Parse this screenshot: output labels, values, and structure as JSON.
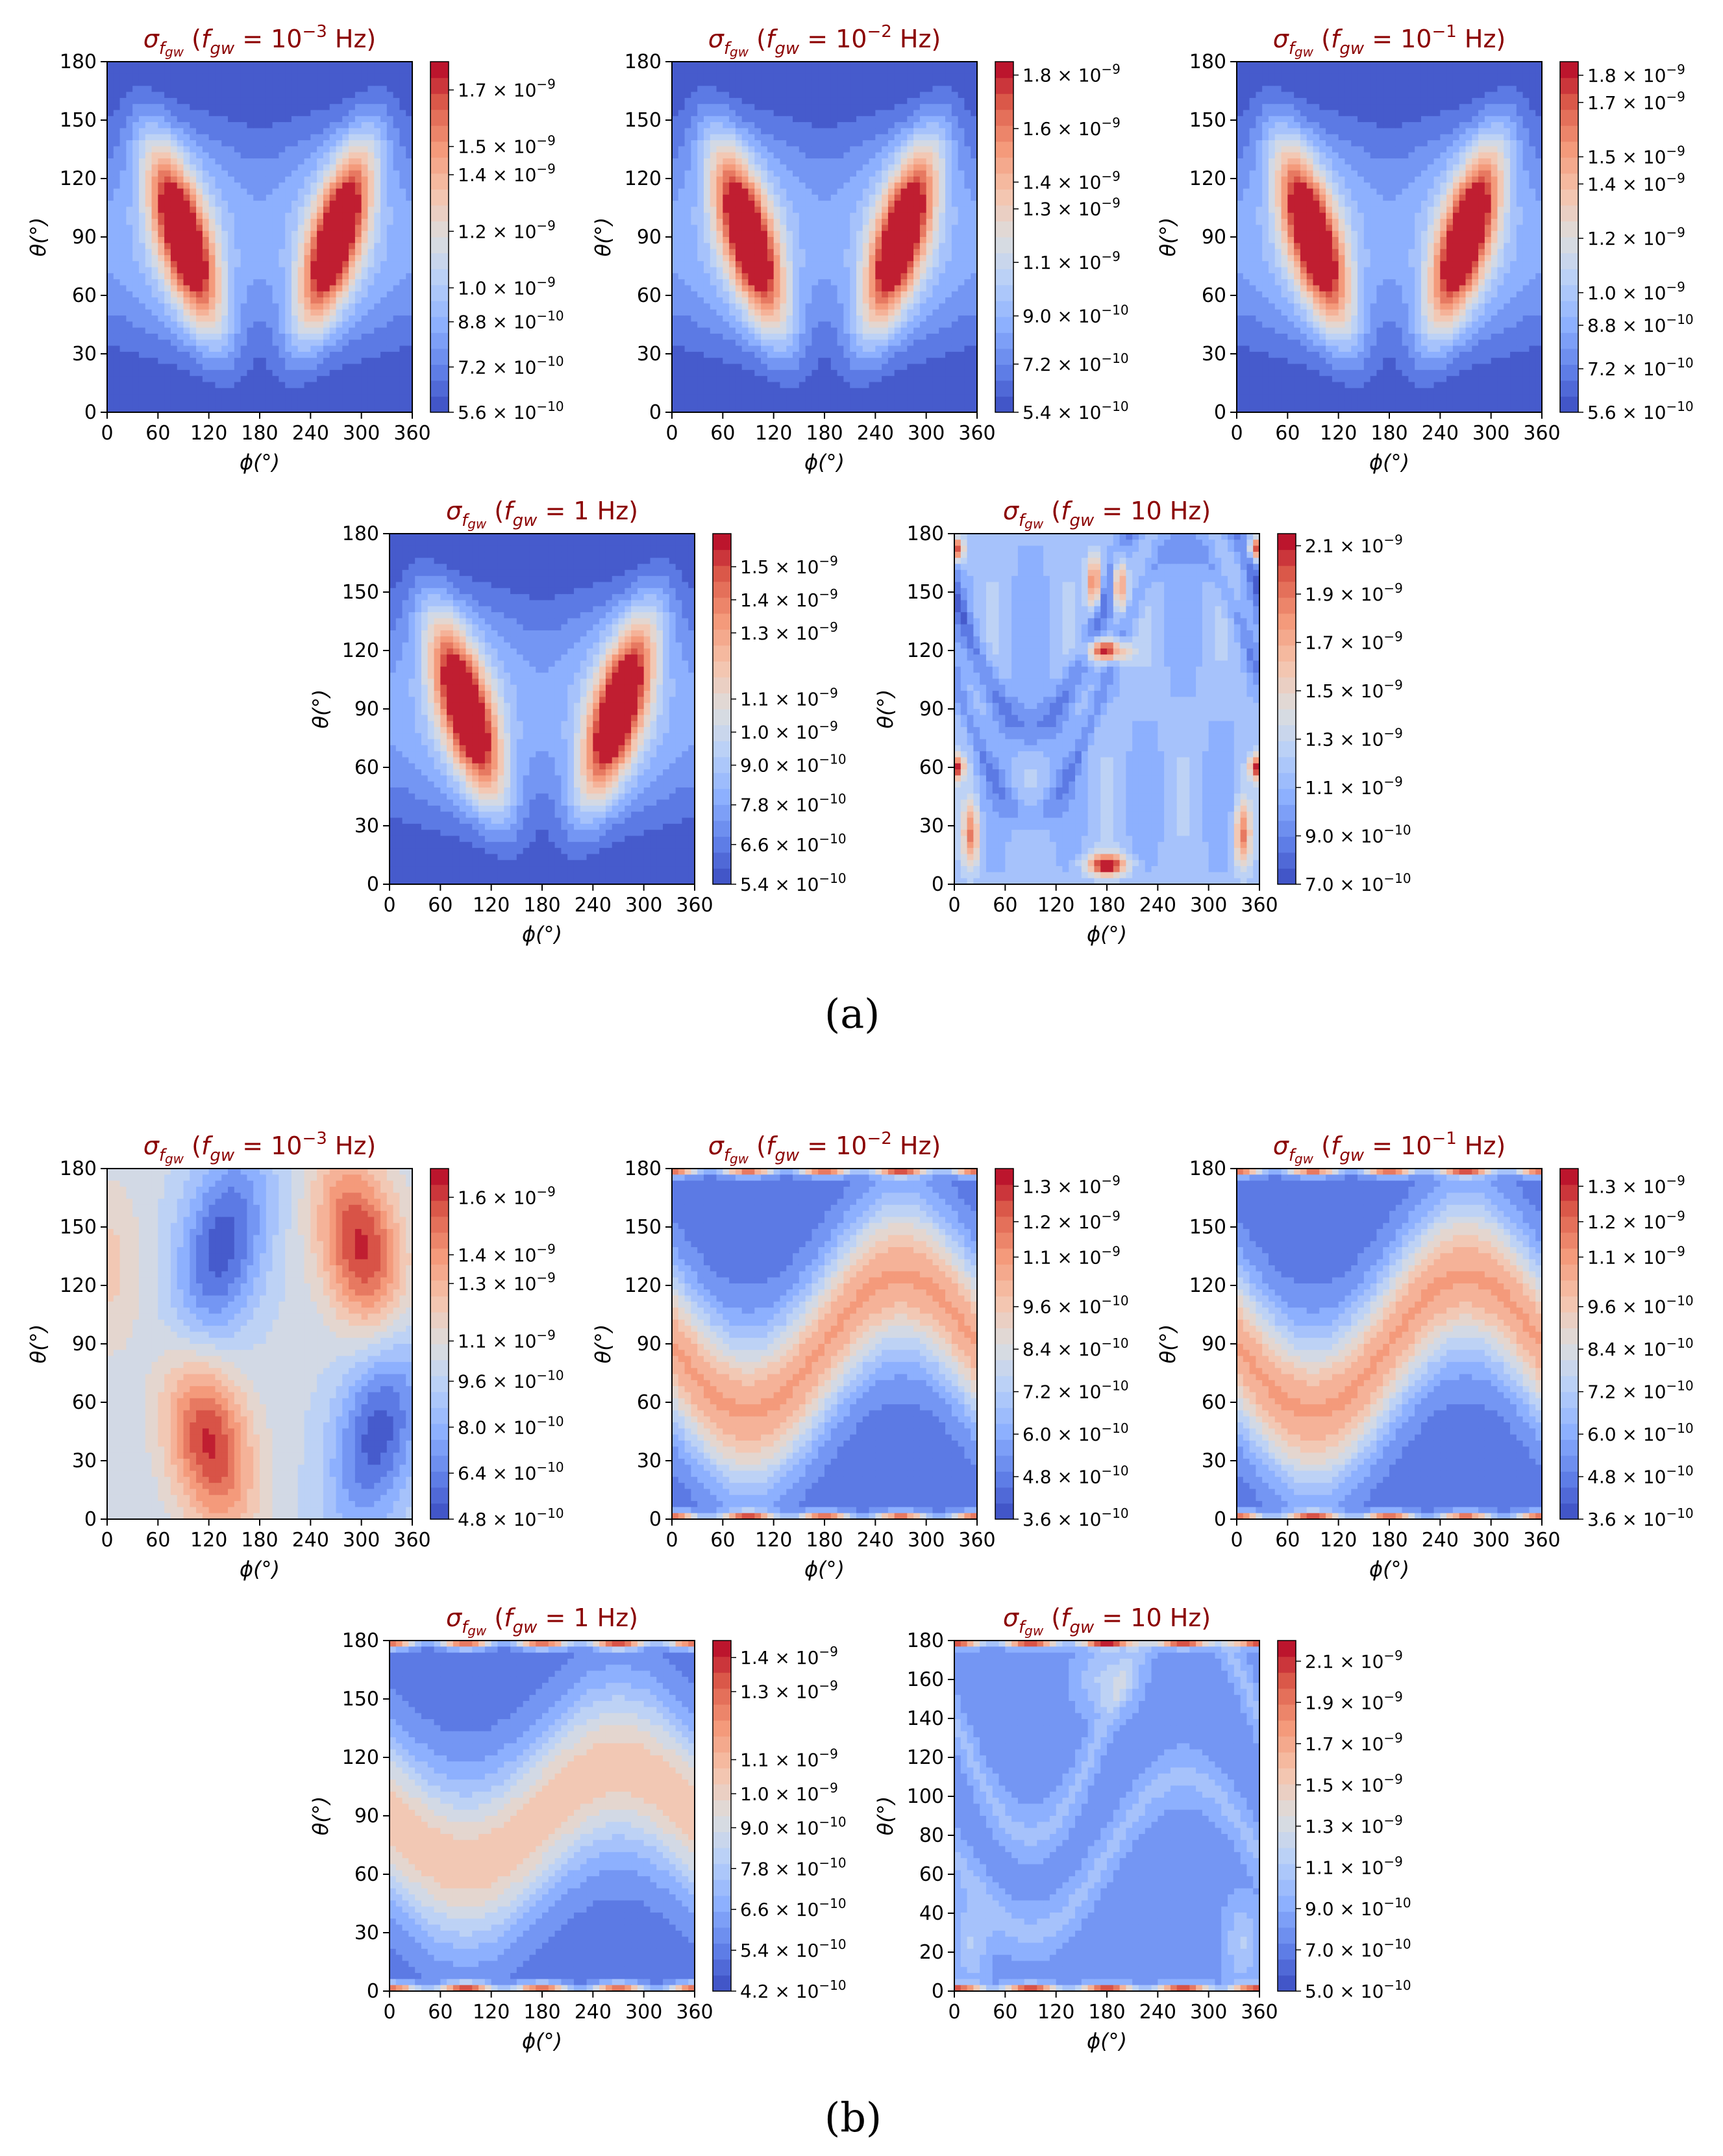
{
  "figure": {
    "panel_labels": [
      "(a)",
      "(b)"
    ]
  },
  "colors": {
    "title": "#8b0000",
    "colormap": "coolwarm",
    "axis": "#000000"
  },
  "chart_data": [
    {
      "type": "heatmap",
      "group": "a",
      "title": "σ_fgw (f_gw = 10^-3 Hz)",
      "freq_label": "f_gw = 10^-3 Hz",
      "title_parts": {
        "main": "σ",
        "sub": "f",
        "subsub": "gw",
        "paren": "(",
        "f": "f",
        "fsub": "gw",
        "eq": " = ",
        "base": "10",
        "exp": "−3",
        "unit": " Hz)"
      },
      "xlabel": "ϕ(°)",
      "ylabel": "θ(°)",
      "xlim": [
        0,
        360
      ],
      "ylim": [
        0,
        180
      ],
      "xticks": [
        "0",
        "60",
        "120",
        "180",
        "240",
        "300",
        "360"
      ],
      "yticks": [
        "0",
        "30",
        "60",
        "90",
        "120",
        "150",
        "180"
      ],
      "colorbar": {
        "min": 5.6e-10,
        "max": 1.8e-09,
        "ticks": [
          {
            "mant": "5.6",
            "exp": "−10"
          },
          {
            "mant": "7.2",
            "exp": "−10"
          },
          {
            "mant": "8.8",
            "exp": "−10"
          },
          {
            "mant": "1.0",
            "exp": "−9"
          },
          {
            "mant": "1.2",
            "exp": "−9"
          },
          {
            "mant": "1.4",
            "exp": "−9"
          },
          {
            "mant": "1.5",
            "exp": "−9"
          },
          {
            "mant": "1.7",
            "exp": "−9"
          }
        ]
      },
      "pattern": "A1"
    },
    {
      "type": "heatmap",
      "group": "a",
      "title": "σ_fgw (f_gw = 10^-2 Hz)",
      "freq_label": "f_gw = 10^-2 Hz",
      "title_parts": {
        "main": "σ",
        "sub": "f",
        "subsub": "gw",
        "paren": "(",
        "f": "f",
        "fsub": "gw",
        "eq": " = ",
        "base": "10",
        "exp": "−2",
        "unit": " Hz)"
      },
      "xlabel": "ϕ(°)",
      "ylabel": "θ(°)",
      "xlim": [
        0,
        360
      ],
      "ylim": [
        0,
        180
      ],
      "xticks": [
        "0",
        "60",
        "120",
        "180",
        "240",
        "300",
        "360"
      ],
      "yticks": [
        "0",
        "30",
        "60",
        "90",
        "120",
        "150",
        "180"
      ],
      "colorbar": {
        "min": 5.4e-10,
        "max": 1.85e-09,
        "ticks": [
          {
            "mant": "5.4",
            "exp": "−10"
          },
          {
            "mant": "7.2",
            "exp": "−10"
          },
          {
            "mant": "9.0",
            "exp": "−10"
          },
          {
            "mant": "1.1",
            "exp": "−9"
          },
          {
            "mant": "1.3",
            "exp": "−9"
          },
          {
            "mant": "1.4",
            "exp": "−9"
          },
          {
            "mant": "1.6",
            "exp": "−9"
          },
          {
            "mant": "1.8",
            "exp": "−9"
          }
        ]
      },
      "pattern": "A1"
    },
    {
      "type": "heatmap",
      "group": "a",
      "title": "σ_fgw (f_gw = 10^-1 Hz)",
      "freq_label": "f_gw = 10^-1 Hz",
      "title_parts": {
        "main": "σ",
        "sub": "f",
        "subsub": "gw",
        "paren": "(",
        "f": "f",
        "fsub": "gw",
        "eq": " = ",
        "base": "10",
        "exp": "−1",
        "unit": " Hz)"
      },
      "xlabel": "ϕ(°)",
      "ylabel": "θ(°)",
      "xlim": [
        0,
        360
      ],
      "ylim": [
        0,
        180
      ],
      "xticks": [
        "0",
        "60",
        "120",
        "180",
        "240",
        "300",
        "360"
      ],
      "yticks": [
        "0",
        "30",
        "60",
        "90",
        "120",
        "150",
        "180"
      ],
      "colorbar": {
        "min": 5.6e-10,
        "max": 1.85e-09,
        "ticks": [
          {
            "mant": "5.6",
            "exp": "−10"
          },
          {
            "mant": "7.2",
            "exp": "−10"
          },
          {
            "mant": "8.8",
            "exp": "−10"
          },
          {
            "mant": "1.0",
            "exp": "−9"
          },
          {
            "mant": "1.2",
            "exp": "−9"
          },
          {
            "mant": "1.4",
            "exp": "−9"
          },
          {
            "mant": "1.5",
            "exp": "−9"
          },
          {
            "mant": "1.7",
            "exp": "−9"
          },
          {
            "mant": "1.8",
            "exp": "−9"
          }
        ]
      },
      "pattern": "A1"
    },
    {
      "type": "heatmap",
      "group": "a",
      "title": "σ_fgw (f_gw = 1 Hz)",
      "freq_label": "f_gw = 1 Hz",
      "title_parts": {
        "main": "σ",
        "sub": "f",
        "subsub": "gw",
        "paren": "(",
        "f": "f",
        "fsub": "gw",
        "eq": " = ",
        "base": "1",
        "exp": "",
        "unit": " Hz)"
      },
      "xlabel": "ϕ(°)",
      "ylabel": "θ(°)",
      "xlim": [
        0,
        360
      ],
      "ylim": [
        0,
        180
      ],
      "xticks": [
        "0",
        "60",
        "120",
        "180",
        "240",
        "300",
        "360"
      ],
      "yticks": [
        "0",
        "30",
        "60",
        "90",
        "120",
        "150",
        "180"
      ],
      "colorbar": {
        "min": 5.4e-10,
        "max": 1.6e-09,
        "ticks": [
          {
            "mant": "5.4",
            "exp": "−10"
          },
          {
            "mant": "6.6",
            "exp": "−10"
          },
          {
            "mant": "7.8",
            "exp": "−10"
          },
          {
            "mant": "9.0",
            "exp": "−10"
          },
          {
            "mant": "1.0",
            "exp": "−9"
          },
          {
            "mant": "1.1",
            "exp": "−9"
          },
          {
            "mant": "1.3",
            "exp": "−9"
          },
          {
            "mant": "1.4",
            "exp": "−9"
          },
          {
            "mant": "1.5",
            "exp": "−9"
          }
        ]
      },
      "pattern": "A1"
    },
    {
      "type": "heatmap",
      "group": "a",
      "title": "σ_fgw (f_gw = 10 Hz)",
      "freq_label": "f_gw = 10 Hz",
      "title_parts": {
        "main": "σ",
        "sub": "f",
        "subsub": "gw",
        "paren": "(",
        "f": "f",
        "fsub": "gw",
        "eq": " = ",
        "base": "10",
        "exp": "",
        "unit": " Hz)"
      },
      "xlabel": "ϕ(°)",
      "ylabel": "θ(°)",
      "xlim": [
        0,
        360
      ],
      "ylim": [
        0,
        180
      ],
      "xticks": [
        "0",
        "60",
        "120",
        "180",
        "240",
        "300",
        "360"
      ],
      "yticks": [
        "0",
        "30",
        "60",
        "90",
        "120",
        "150",
        "180"
      ],
      "colorbar": {
        "min": 7e-10,
        "max": 2.15e-09,
        "ticks": [
          {
            "mant": "7.0",
            "exp": "−10"
          },
          {
            "mant": "9.0",
            "exp": "−10"
          },
          {
            "mant": "1.1",
            "exp": "−9"
          },
          {
            "mant": "1.3",
            "exp": "−9"
          },
          {
            "mant": "1.5",
            "exp": "−9"
          },
          {
            "mant": "1.7",
            "exp": "−9"
          },
          {
            "mant": "1.9",
            "exp": "−9"
          },
          {
            "mant": "2.1",
            "exp": "−9"
          }
        ]
      },
      "pattern": "A10"
    },
    {
      "type": "heatmap",
      "group": "b",
      "title": "σ_fgw (f_gw = 10^-3 Hz)",
      "freq_label": "f_gw = 10^-3 Hz",
      "title_parts": {
        "main": "σ",
        "sub": "f",
        "subsub": "gw",
        "paren": "(",
        "f": "f",
        "fsub": "gw",
        "eq": " = ",
        "base": "10",
        "exp": "−3",
        "unit": " Hz)"
      },
      "xlabel": "ϕ(°)",
      "ylabel": "θ(°)",
      "xlim": [
        0,
        360
      ],
      "ylim": [
        0,
        180
      ],
      "xticks": [
        "0",
        "60",
        "120",
        "180",
        "240",
        "300",
        "360"
      ],
      "yticks": [
        "0",
        "30",
        "60",
        "90",
        "120",
        "150",
        "180"
      ],
      "colorbar": {
        "min": 4.8e-10,
        "max": 1.7e-09,
        "ticks": [
          {
            "mant": "4.8",
            "exp": "−10"
          },
          {
            "mant": "6.4",
            "exp": "−10"
          },
          {
            "mant": "8.0",
            "exp": "−10"
          },
          {
            "mant": "9.6",
            "exp": "−10"
          },
          {
            "mant": "1.1",
            "exp": "−9"
          },
          {
            "mant": "1.3",
            "exp": "−9"
          },
          {
            "mant": "1.4",
            "exp": "−9"
          },
          {
            "mant": "1.6",
            "exp": "−9"
          }
        ]
      },
      "pattern": "B1"
    },
    {
      "type": "heatmap",
      "group": "b",
      "title": "σ_fgw (f_gw = 10^-2 Hz)",
      "freq_label": "f_gw = 10^-2 Hz",
      "title_parts": {
        "main": "σ",
        "sub": "f",
        "subsub": "gw",
        "paren": "(",
        "f": "f",
        "fsub": "gw",
        "eq": " = ",
        "base": "10",
        "exp": "−2",
        "unit": " Hz)"
      },
      "xlabel": "ϕ(°)",
      "ylabel": "θ(°)",
      "xlim": [
        0,
        360
      ],
      "ylim": [
        0,
        180
      ],
      "xticks": [
        "0",
        "60",
        "120",
        "180",
        "240",
        "300",
        "360"
      ],
      "yticks": [
        "0",
        "30",
        "60",
        "90",
        "120",
        "150",
        "180"
      ],
      "colorbar": {
        "min": 3.6e-10,
        "max": 1.35e-09,
        "ticks": [
          {
            "mant": "3.6",
            "exp": "−10"
          },
          {
            "mant": "4.8",
            "exp": "−10"
          },
          {
            "mant": "6.0",
            "exp": "−10"
          },
          {
            "mant": "7.2",
            "exp": "−10"
          },
          {
            "mant": "8.4",
            "exp": "−10"
          },
          {
            "mant": "9.6",
            "exp": "−10"
          },
          {
            "mant": "1.1",
            "exp": "−9"
          },
          {
            "mant": "1.2",
            "exp": "−9"
          },
          {
            "mant": "1.3",
            "exp": "−9"
          }
        ]
      },
      "pattern": "B2"
    },
    {
      "type": "heatmap",
      "group": "b",
      "title": "σ_fgw (f_gw = 10^-1 Hz)",
      "freq_label": "f_gw = 10^-1 Hz",
      "title_parts": {
        "main": "σ",
        "sub": "f",
        "subsub": "gw",
        "paren": "(",
        "f": "f",
        "fsub": "gw",
        "eq": " = ",
        "base": "10",
        "exp": "−1",
        "unit": " Hz)"
      },
      "xlabel": "ϕ(°)",
      "ylabel": "θ(°)",
      "xlim": [
        0,
        360
      ],
      "ylim": [
        0,
        180
      ],
      "xticks": [
        "0",
        "60",
        "120",
        "180",
        "240",
        "300",
        "360"
      ],
      "yticks": [
        "0",
        "30",
        "60",
        "90",
        "120",
        "150",
        "180"
      ],
      "colorbar": {
        "min": 3.6e-10,
        "max": 1.35e-09,
        "ticks": [
          {
            "mant": "3.6",
            "exp": "−10"
          },
          {
            "mant": "4.8",
            "exp": "−10"
          },
          {
            "mant": "6.0",
            "exp": "−10"
          },
          {
            "mant": "7.2",
            "exp": "−10"
          },
          {
            "mant": "8.4",
            "exp": "−10"
          },
          {
            "mant": "9.6",
            "exp": "−10"
          },
          {
            "mant": "1.1",
            "exp": "−9"
          },
          {
            "mant": "1.2",
            "exp": "−9"
          },
          {
            "mant": "1.3",
            "exp": "−9"
          }
        ]
      },
      "pattern": "B2"
    },
    {
      "type": "heatmap",
      "group": "b",
      "title": "σ_fgw (f_gw = 1 Hz)",
      "freq_label": "f_gw = 1 Hz",
      "title_parts": {
        "main": "σ",
        "sub": "f",
        "subsub": "gw",
        "paren": "(",
        "f": "f",
        "fsub": "gw",
        "eq": " = ",
        "base": "1",
        "exp": "",
        "unit": " Hz)"
      },
      "xlabel": "ϕ(°)",
      "ylabel": "θ(°)",
      "xlim": [
        0,
        360
      ],
      "ylim": [
        0,
        180
      ],
      "xticks": [
        "0",
        "60",
        "120",
        "180",
        "240",
        "300",
        "360"
      ],
      "yticks": [
        "0",
        "30",
        "60",
        "90",
        "120",
        "150",
        "180"
      ],
      "colorbar": {
        "min": 4.2e-10,
        "max": 1.45e-09,
        "ticks": [
          {
            "mant": "4.2",
            "exp": "−10"
          },
          {
            "mant": "5.4",
            "exp": "−10"
          },
          {
            "mant": "6.6",
            "exp": "−10"
          },
          {
            "mant": "7.8",
            "exp": "−10"
          },
          {
            "mant": "9.0",
            "exp": "−10"
          },
          {
            "mant": "1.0",
            "exp": "−9"
          },
          {
            "mant": "1.1",
            "exp": "−9"
          },
          {
            "mant": "1.3",
            "exp": "−9"
          },
          {
            "mant": "1.4",
            "exp": "−9"
          }
        ]
      },
      "pattern": "B4"
    },
    {
      "type": "heatmap",
      "group": "b",
      "title": "σ_fgw (f_gw = 10 Hz)",
      "freq_label": "f_gw = 10 Hz",
      "title_parts": {
        "main": "σ",
        "sub": "f",
        "subsub": "gw",
        "paren": "(",
        "f": "f",
        "fsub": "gw",
        "eq": " = ",
        "base": "10",
        "exp": "",
        "unit": " Hz)"
      },
      "xlabel": "ϕ(°)",
      "ylabel": "θ(°)",
      "xlim": [
        0,
        360
      ],
      "ylim": [
        0,
        180
      ],
      "xticks": [
        "0",
        "60",
        "120",
        "180",
        "240",
        "300",
        "360"
      ],
      "yticks": [
        "0",
        "20",
        "40",
        "60",
        "80",
        "100",
        "120",
        "140",
        "160",
        "180"
      ],
      "colorbar": {
        "min": 5e-10,
        "max": 2.2e-09,
        "ticks": [
          {
            "mant": "5.0",
            "exp": "−10"
          },
          {
            "mant": "7.0",
            "exp": "−10"
          },
          {
            "mant": "9.0",
            "exp": "−10"
          },
          {
            "mant": "1.1",
            "exp": "−9"
          },
          {
            "mant": "1.3",
            "exp": "−9"
          },
          {
            "mant": "1.5",
            "exp": "−9"
          },
          {
            "mant": "1.7",
            "exp": "−9"
          },
          {
            "mant": "1.9",
            "exp": "−9"
          },
          {
            "mant": "2.1",
            "exp": "−9"
          }
        ]
      },
      "pattern": "B5"
    }
  ]
}
